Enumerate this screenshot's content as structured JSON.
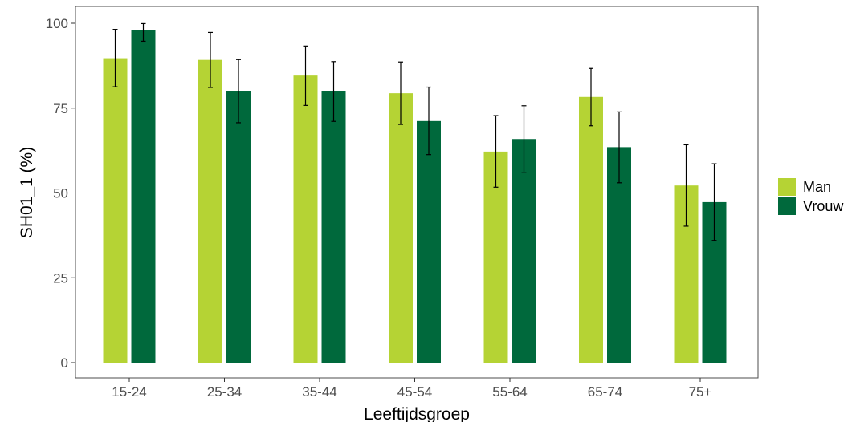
{
  "chart_data": {
    "type": "bar",
    "title": "",
    "xlabel": "Leeftijdsgroep",
    "ylabel": "SH01_1  (%)",
    "categories": [
      "15-24",
      "25-34",
      "35-44",
      "45-54",
      "55-64",
      "65-74",
      "75+"
    ],
    "ylim": [
      0,
      100
    ],
    "yticks": [
      0,
      25,
      50,
      75,
      100
    ],
    "grid": false,
    "legend": "right",
    "series": [
      {
        "name": "Man",
        "color": "#b5d334",
        "values": [
          89.7,
          89.2,
          84.6,
          79.4,
          62.2,
          78.3,
          52.2
        ],
        "err_low": [
          81.3,
          81.1,
          75.8,
          70.2,
          51.7,
          69.8,
          40.2
        ],
        "err_high": [
          98.2,
          97.3,
          93.3,
          88.6,
          72.8,
          86.7,
          64.2
        ]
      },
      {
        "name": "Vrouw",
        "color": "#00693c",
        "values": [
          98.1,
          80.0,
          80.0,
          71.2,
          65.9,
          63.5,
          47.3
        ],
        "err_low": [
          94.7,
          70.7,
          71.1,
          61.3,
          56.1,
          53.0,
          36.0
        ],
        "err_high": [
          99.9,
          89.3,
          88.7,
          81.2,
          75.7,
          73.9,
          58.6
        ]
      }
    ]
  }
}
